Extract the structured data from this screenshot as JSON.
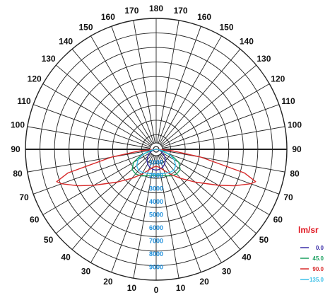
{
  "chart_data": {
    "type": "polar",
    "unit": "lm/sr",
    "angular_ticks": [
      "180",
      "170",
      "160",
      "150",
      "140",
      "130",
      "120",
      "110",
      "100",
      "90",
      "80",
      "70",
      "60",
      "50",
      "40",
      "30",
      "20",
      "10",
      "0"
    ],
    "radial_ticks": [
      "1000",
      "2000",
      "3000",
      "4000",
      "5000",
      "6000",
      "7000",
      "8000",
      "9000"
    ],
    "r_max": 10000,
    "series": [
      {
        "name": "0.0",
        "color": "#3b2ea8",
        "angles": [
          0,
          10,
          20,
          30,
          40,
          50,
          60,
          70,
          80,
          90
        ],
        "values": [
          1600,
          1550,
          1450,
          1300,
          1100,
          850,
          600,
          350,
          150,
          40
        ]
      },
      {
        "name": "45.0",
        "color": "#1aa060",
        "angles": [
          0,
          10,
          20,
          30,
          40,
          50,
          60,
          65,
          70,
          80,
          90
        ],
        "values": [
          2000,
          2050,
          2150,
          2350,
          2450,
          2400,
          2000,
          1500,
          900,
          250,
          40
        ]
      },
      {
        "name": "90.0",
        "color": "#d82a2a",
        "angles": [
          0,
          10,
          20,
          30,
          40,
          50,
          60,
          65,
          70,
          72,
          75,
          80,
          85,
          90
        ],
        "values": [
          1300,
          1400,
          1700,
          2200,
          2900,
          3900,
          5500,
          6600,
          7700,
          8000,
          7000,
          3500,
          1200,
          60
        ]
      },
      {
        "name": "135.0",
        "color": "#3cc0e8",
        "angles": [
          0,
          10,
          20,
          30,
          40,
          50,
          60,
          70,
          80,
          90
        ],
        "values": [
          1900,
          1900,
          1950,
          2050,
          2100,
          1950,
          1600,
          1050,
          400,
          50
        ]
      }
    ]
  }
}
